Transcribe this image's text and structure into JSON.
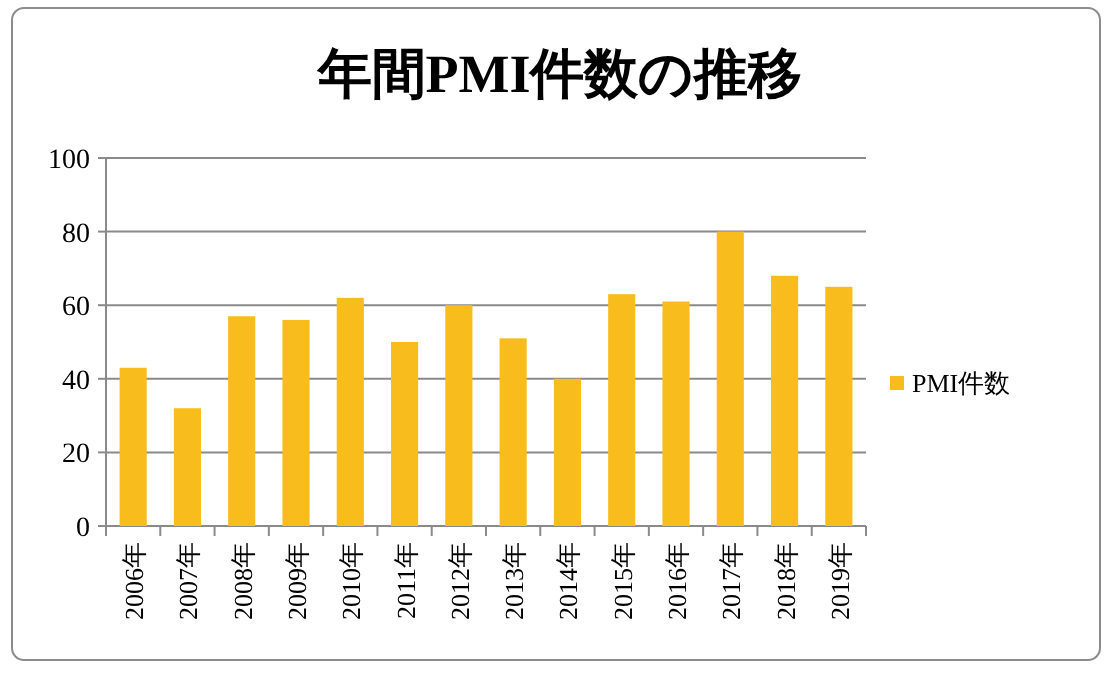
{
  "chart_data": {
    "type": "bar",
    "title": "年間PMI件数の推移",
    "categories": [
      "2006年",
      "2007年",
      "2008年",
      "2009年",
      "2010年",
      "2011年",
      "2012年",
      "2013年",
      "2014年",
      "2015年",
      "2016年",
      "2017年",
      "2018年",
      "2019年"
    ],
    "series": [
      {
        "name": "PMI件数",
        "color": "#f8bd1c",
        "values": [
          43,
          32,
          57,
          56,
          62,
          50,
          60,
          51,
          40,
          63,
          61,
          80,
          68,
          65
        ]
      }
    ],
    "ylim": [
      0,
      100
    ],
    "yticks": [
      0,
      20,
      40,
      60,
      80,
      100
    ],
    "grid": "y",
    "legend": "right"
  }
}
